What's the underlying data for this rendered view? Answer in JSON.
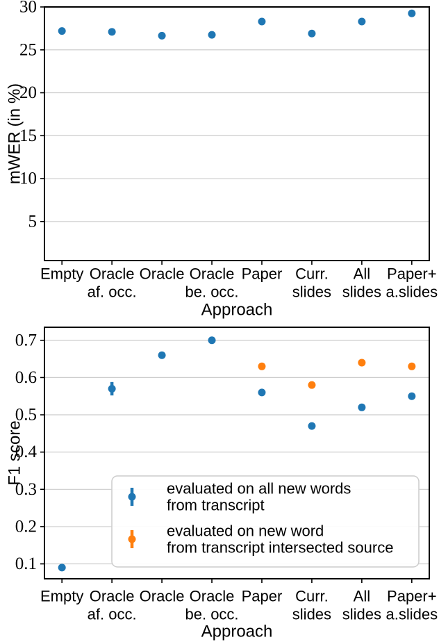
{
  "page": {
    "background": "#ffffff"
  },
  "colors": {
    "blue": "#1f77b4",
    "orange": "#ff7f0e",
    "grid": "#cccccc",
    "axis": "#000000",
    "legend_border": "#cccccc",
    "legend_bg": "#ffffff",
    "text": "#000000"
  },
  "chart_data": [
    {
      "type": "scatter",
      "title": "",
      "xlabel": "Approach",
      "ylabel": "mWER (in %)",
      "categories": [
        "Empty",
        "Oracle af. occ.",
        "Oracle",
        "Oracle be. occ.",
        "Paper",
        "Curr. slides",
        "All slides",
        "Paper+ a.slides"
      ],
      "category_lines": [
        [
          "Empty",
          ""
        ],
        [
          "Oracle",
          "af. occ."
        ],
        [
          "Oracle",
          ""
        ],
        [
          "Oracle",
          "be. occ."
        ],
        [
          "Paper",
          ""
        ],
        [
          "Curr.",
          "slides"
        ],
        [
          "All",
          "slides"
        ],
        [
          "Paper+",
          "a.slides"
        ]
      ],
      "yticks": [
        5,
        10,
        15,
        20,
        25,
        30
      ],
      "ytick_labels": [
        "5",
        "10",
        "15",
        "20",
        "25",
        "30"
      ],
      "ylim": [
        0.45,
        30
      ],
      "grid": true,
      "legend_position": "none",
      "series": [
        {
          "name": "mWER",
          "color_key": "blue",
          "values": [
            27.2,
            27.1,
            26.65,
            26.75,
            28.3,
            26.9,
            28.3,
            29.25
          ],
          "errors": [
            0,
            0,
            0,
            0,
            0,
            0,
            0,
            0
          ]
        }
      ]
    },
    {
      "type": "scatter",
      "title": "",
      "xlabel": "Approach",
      "ylabel": "F1 score",
      "categories": [
        "Empty",
        "Oracle af. occ.",
        "Oracle",
        "Oracle be. occ.",
        "Paper",
        "Curr. slides",
        "All slides",
        "Paper+ a.slides"
      ],
      "category_lines": [
        [
          "Empty",
          ""
        ],
        [
          "Oracle",
          "af. occ."
        ],
        [
          "Oracle",
          ""
        ],
        [
          "Oracle",
          "be. occ."
        ],
        [
          "Paper",
          ""
        ],
        [
          "Curr.",
          "slides"
        ],
        [
          "All",
          "slides"
        ],
        [
          "Paper+",
          "a.slides"
        ]
      ],
      "yticks": [
        0.1,
        0.2,
        0.3,
        0.4,
        0.5,
        0.6,
        0.7
      ],
      "ytick_labels": [
        "0.1",
        "0.2",
        "0.3",
        "0.4",
        "0.5",
        "0.6",
        "0.7"
      ],
      "ylim": [
        0.06,
        0.735
      ],
      "grid": true,
      "legend_position": "lower center-right",
      "series": [
        {
          "name": "evaluated on all new words from transcript",
          "color_key": "blue",
          "values": [
            0.09,
            0.57,
            0.66,
            0.7,
            0.56,
            0.47,
            0.52,
            0.55
          ],
          "errors": [
            0.004,
            0.018,
            0.004,
            0.004,
            0.005,
            0.005,
            0.007,
            0.007
          ]
        },
        {
          "name": "evaluated on new word from transcript intersected source",
          "color_key": "orange",
          "values": [
            null,
            null,
            null,
            null,
            0.63,
            0.58,
            0.64,
            0.63
          ],
          "errors": [
            null,
            null,
            null,
            null,
            0.006,
            0.01,
            0.006,
            0.006
          ]
        }
      ],
      "legend": {
        "entries": [
          {
            "lines": [
              "evaluated on all new words",
              "from transcript"
            ],
            "color_key": "blue"
          },
          {
            "lines": [
              "evaluated on new word",
              "from transcript intersected source"
            ],
            "color_key": "orange"
          }
        ]
      }
    }
  ]
}
